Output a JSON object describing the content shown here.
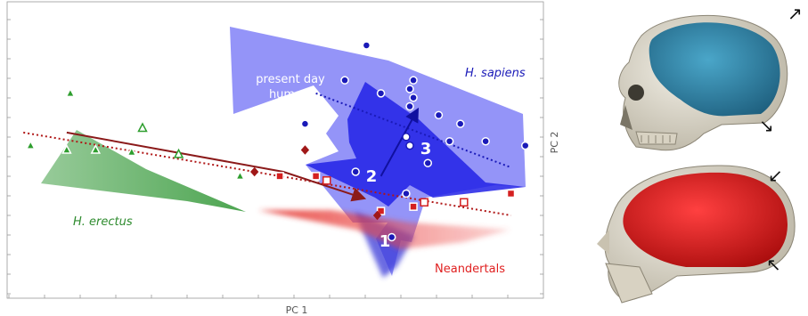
{
  "chart_data": {
    "type": "scatter",
    "xlabel": "PC 1",
    "ylabel": "PC 2",
    "grid": false,
    "groups": [
      {
        "name": "H. erectus",
        "color": "#2e9e2e",
        "fill": "#4caf50",
        "marker": "triangle",
        "points": [
          [
            1.0,
            3.5
          ],
          [
            2.0,
            3.4
          ],
          [
            2.8,
            3.4
          ],
          [
            3.8,
            3.35
          ],
          [
            6.8,
            2.8
          ],
          [
            2.1,
            4.7
          ],
          [
            4.1,
            3.9
          ],
          [
            5.1,
            3.3
          ]
        ],
        "open_points": [
          [
            4.1,
            3.9
          ],
          [
            5.1,
            3.3
          ]
        ]
      },
      {
        "name": "Neandertals",
        "color": "#d42020",
        "fill": "#e53935",
        "marker": "square",
        "points": [
          [
            7.9,
            2.8
          ],
          [
            8.9,
            2.8
          ],
          [
            9.2,
            2.7
          ],
          [
            11.6,
            2.1
          ],
          [
            11.9,
            2.2
          ],
          [
            13.0,
            2.2
          ],
          [
            14.3,
            2.4
          ],
          [
            10.7,
            2.0
          ]
        ],
        "open_points": [
          [
            9.2,
            2.7
          ],
          [
            11.9,
            2.2
          ],
          [
            13.0,
            2.2
          ]
        ]
      },
      {
        "name": "H. sapiens",
        "color": "#1a1ab8",
        "fill": "#3b3bf0",
        "marker": "circle",
        "points": [
          [
            8.6,
            4.0
          ],
          [
            10.3,
            5.8
          ],
          [
            9.7,
            5.0
          ],
          [
            10.7,
            4.7
          ],
          [
            11.6,
            5.0
          ],
          [
            11.5,
            4.8
          ],
          [
            11.6,
            4.6
          ],
          [
            11.5,
            4.4
          ],
          [
            12.3,
            4.2
          ],
          [
            12.9,
            4.0
          ],
          [
            11.4,
            3.7
          ],
          [
            11.5,
            3.5
          ],
          [
            12.6,
            3.6
          ],
          [
            13.6,
            3.6
          ],
          [
            14.7,
            3.5
          ],
          [
            10.0,
            2.9
          ],
          [
            12.0,
            3.1
          ],
          [
            11.4,
            2.4
          ],
          [
            11.0,
            1.4
          ]
        ],
        "open_points": [
          [
            11.4,
            3.7
          ],
          [
            11.5,
            3.5
          ]
        ]
      }
    ],
    "other_points": [
      {
        "marker": "diamond",
        "color": "#a01818",
        "points": [
          [
            7.2,
            2.9
          ],
          [
            8.6,
            3.4
          ],
          [
            10.6,
            1.9
          ]
        ]
      }
    ],
    "arrow_path": [
      [
        2.0,
        3.8
      ],
      [
        8.0,
        2.9
      ],
      [
        10.2,
        2.3
      ],
      [
        10.7,
        2.8
      ],
      [
        11.7,
        4.3
      ]
    ],
    "annotations": [
      "present day",
      "humans",
      "1",
      "2",
      "3"
    ],
    "fits": [
      {
        "name": "H. erectus / Neandertals",
        "from": [
          0.8,
          3.8
        ],
        "to": [
          14.3,
          1.9
        ]
      },
      {
        "name": "H. sapiens",
        "from": [
          8.9,
          4.7
        ],
        "to": [
          14.3,
          3.0
        ]
      }
    ]
  },
  "skull_markers": [
    "↗",
    "↘",
    "↙",
    "↖"
  ]
}
